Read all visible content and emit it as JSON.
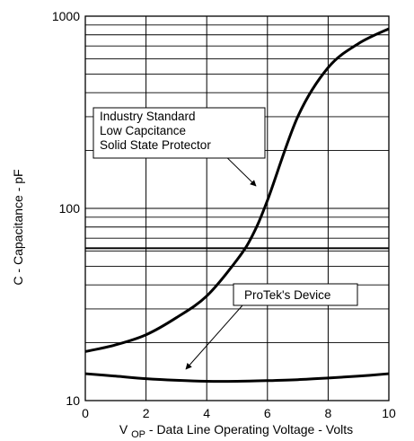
{
  "chart_data": {
    "type": "line",
    "xlabel": {
      "main": "V",
      "sub": "OP",
      "rest": " - Data Line Operating Voltage - Volts"
    },
    "ylabel": "C - Capacitance - pF",
    "xlim": [
      0,
      10
    ],
    "ylim": [
      10,
      1000
    ],
    "yscale": "log",
    "grid": true,
    "x_ticks": [
      "0",
      "2",
      "4",
      "6",
      "8",
      "10"
    ],
    "y_ticks": [
      "10",
      "100",
      "1000"
    ],
    "series": [
      {
        "label_lines": [
          "Industry Standard",
          "Low Capcitance",
          "Solid State Protector"
        ],
        "x": [
          0,
          1,
          2,
          3,
          4,
          5,
          5.5,
          6,
          7,
          8,
          9,
          10
        ],
        "y": [
          18,
          19.5,
          22,
          27,
          35,
          54,
          72,
          110,
          300,
          540,
          720,
          860
        ]
      },
      {
        "label_lines": [
          "ProTek's Device"
        ],
        "x": [
          0,
          1,
          2,
          3,
          4,
          5,
          6,
          7,
          8,
          9,
          10
        ],
        "y": [
          13.8,
          13.4,
          13.0,
          12.75,
          12.6,
          12.6,
          12.7,
          12.85,
          13.1,
          13.4,
          13.8
        ]
      }
    ],
    "reference_line": {
      "y": 62
    }
  }
}
